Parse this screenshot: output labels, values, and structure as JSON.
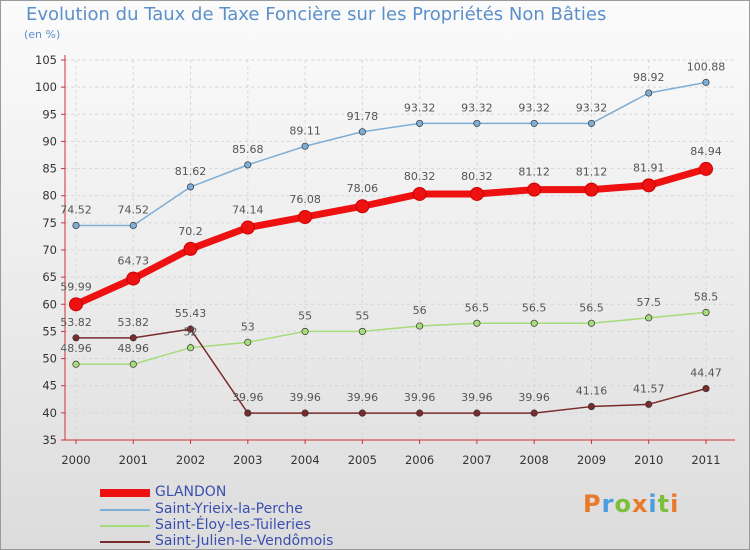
{
  "title": "Evolution du Taux de Taxe Foncière sur les Propriétés Non Bâties",
  "unit_label": "(en %)",
  "logo": {
    "text": "Proxiti",
    "letter_colors": [
      "#e9792b",
      "#4b9de0",
      "#7bbf3a",
      "#e9792b",
      "#4b9de0",
      "#7bbf3a",
      "#e9792b"
    ]
  },
  "chart_data": {
    "type": "line",
    "title": "Evolution du Taux de Taxe Foncière sur les Propriétés Non Bâties",
    "ylabel": "(en %)",
    "x": [
      "2000",
      "2001",
      "2002",
      "2003",
      "2004",
      "2005",
      "2006",
      "2007",
      "2008",
      "2009",
      "2010",
      "2011"
    ],
    "ylim": [
      35,
      105
    ],
    "yticks": [
      "35",
      "40",
      "45",
      "50",
      "55",
      "60",
      "65",
      "70",
      "75",
      "80",
      "85",
      "90",
      "95",
      "100",
      "105"
    ],
    "grid": true,
    "legend_position": "bottom-left",
    "series": [
      {
        "name": "GLANDON",
        "color": "#ee1111",
        "values": [
          59.99,
          64.73,
          70.2,
          74.14,
          76.08,
          78.06,
          80.32,
          80.32,
          81.12,
          81.12,
          81.91,
          84.94
        ],
        "labels": [
          "59.99",
          "64.73",
          "70.2",
          "74.14",
          "76.08",
          "78.06",
          "80.32",
          "80.32",
          "81.12",
          "81.12",
          "81.91",
          "84.94"
        ]
      },
      {
        "name": "Saint-Yrieix-la-Perche",
        "color": "#7eaed6",
        "values": [
          74.52,
          74.52,
          81.62,
          85.68,
          89.11,
          91.78,
          93.32,
          93.32,
          93.32,
          93.32,
          98.92,
          100.88
        ],
        "labels": [
          "74.52",
          "74.52",
          "81.62",
          "85.68",
          "89.11",
          "91.78",
          "93.32",
          "93.32",
          "93.32",
          "93.32",
          "98.92",
          "100.88"
        ]
      },
      {
        "name": "Saint-Éloy-les-Tuileries",
        "color": "#a6dc7a",
        "values": [
          48.96,
          48.96,
          52,
          53,
          55,
          55,
          56,
          56.5,
          56.5,
          56.5,
          57.5,
          58.5
        ],
        "labels": [
          "48.96",
          "48.96",
          "52",
          "53",
          "55",
          "55",
          "56",
          "56.5",
          "56.5",
          "56.5",
          "57.5",
          "58.5"
        ]
      },
      {
        "name": "Saint-Julien-le-Vendômois",
        "color": "#7a2b2b",
        "values": [
          53.82,
          53.82,
          55.43,
          39.96,
          39.96,
          39.96,
          39.96,
          39.96,
          39.96,
          41.16,
          41.57,
          44.47
        ],
        "labels": [
          "53.82",
          "53.82",
          "55.43",
          "39.96",
          "39.96",
          "39.96",
          "39.96",
          "39.96",
          "39.96",
          "41.16",
          "41.57",
          "44.47"
        ]
      }
    ]
  }
}
